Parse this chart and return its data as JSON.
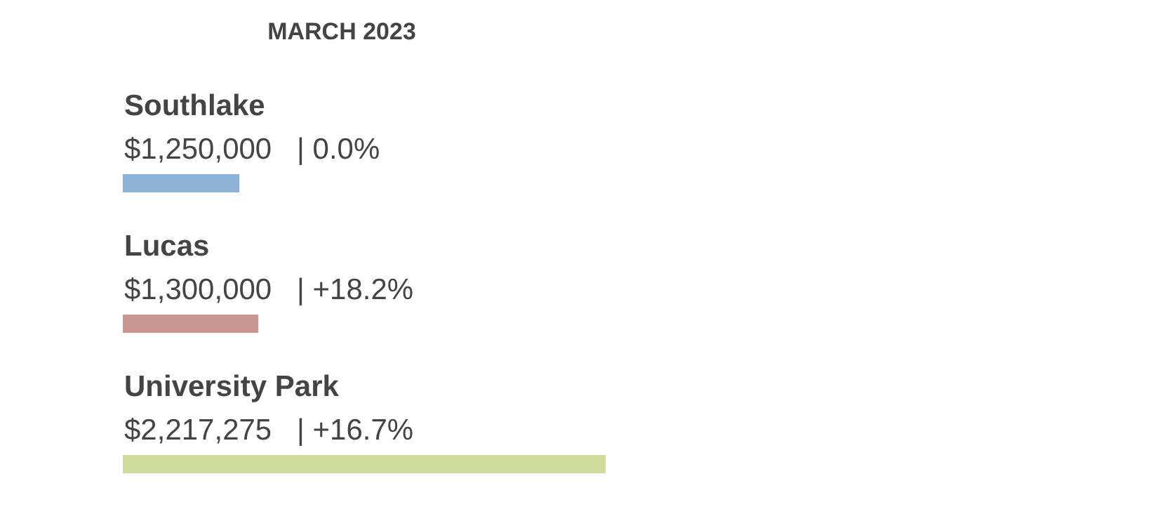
{
  "chart_data": {
    "type": "bar",
    "orientation": "horizontal",
    "title": "MARCH 2023",
    "categories": [
      "Southlake",
      "Lucas",
      "University Park"
    ],
    "values": [
      1250000,
      1300000,
      2217275
    ],
    "value_labels": [
      "$1,250,000",
      "$1,300,000",
      "$2,217,275"
    ],
    "annotations": [
      "| 0.0%",
      "| +18.2%",
      "| +16.7%"
    ],
    "colors": [
      "#2e6fb5",
      "#9b3f32",
      "#a8c14a"
    ],
    "xlim": [
      942000,
      3689000
    ],
    "grid": false
  }
}
